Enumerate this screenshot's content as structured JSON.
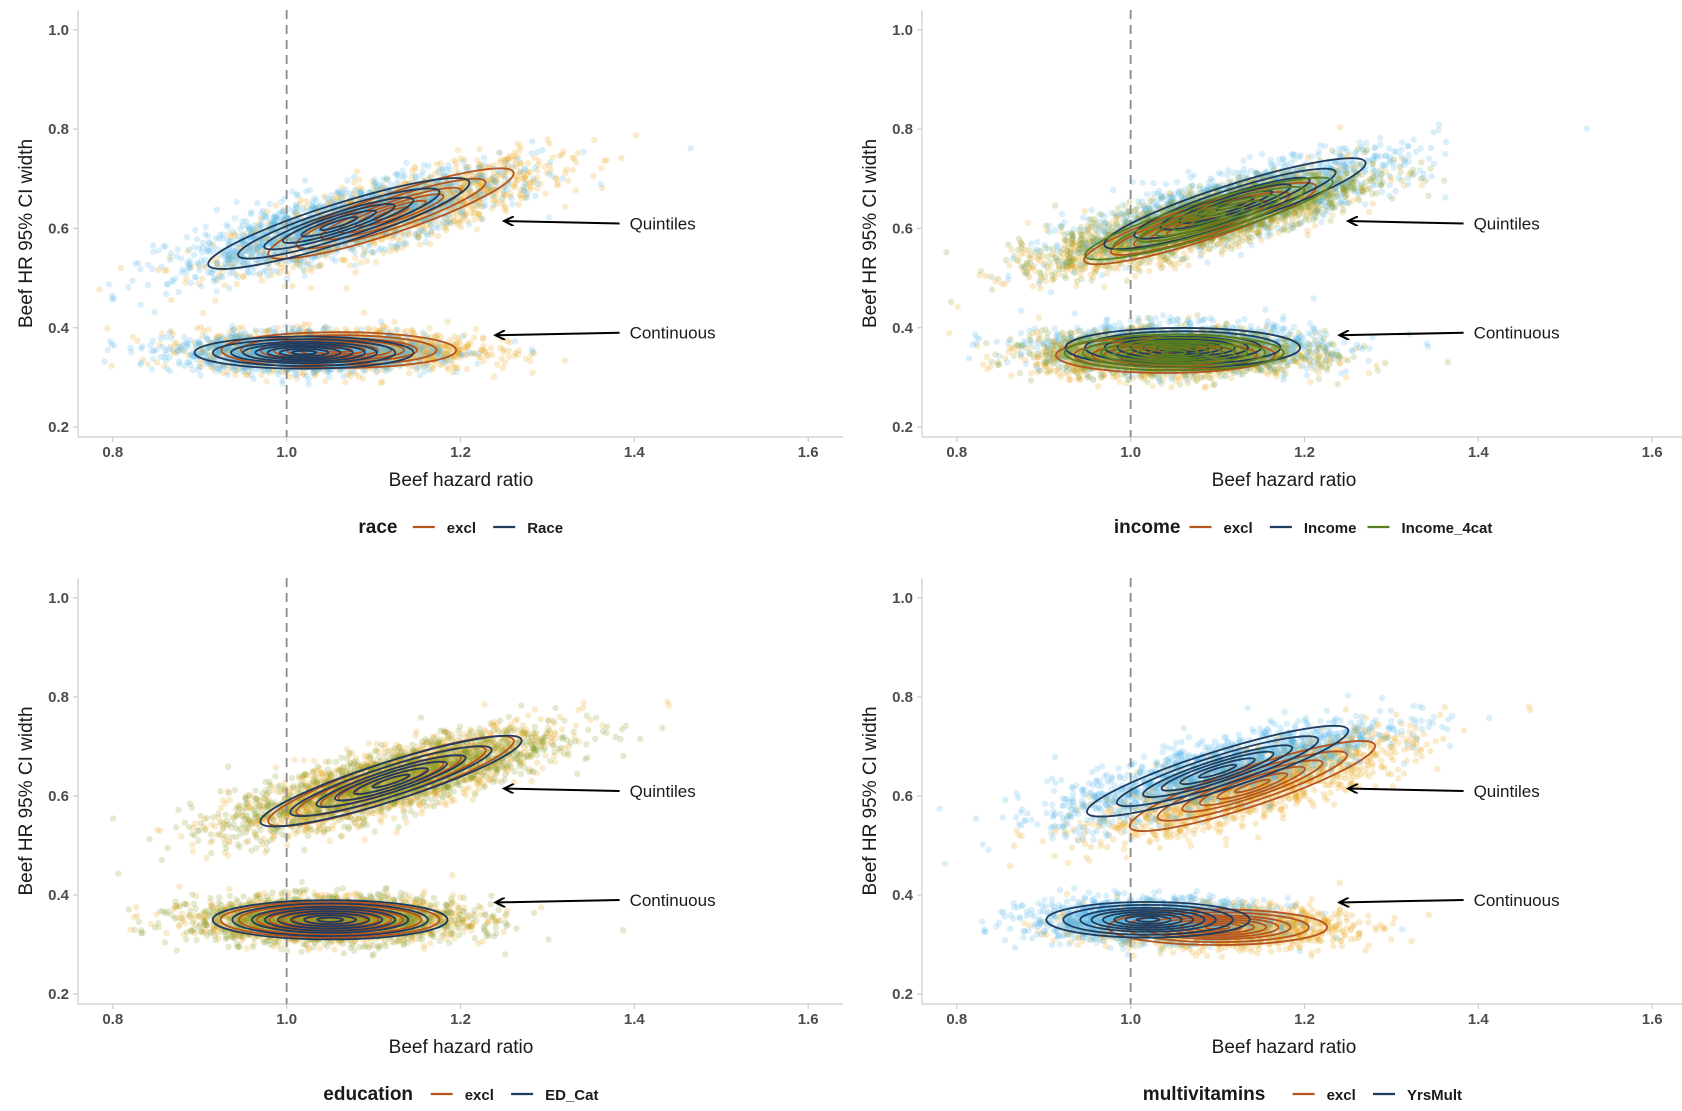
{
  "chart_data": [
    {
      "type": "scatter",
      "xlabel": "Beef hazard ratio",
      "ylabel": "Beef HR 95% CI width",
      "xlim": [
        0.76,
        1.64
      ],
      "ylim": [
        0.18,
        1.04
      ],
      "xticks": [
        "0.8",
        "1.0",
        "1.2",
        "1.4",
        "1.6"
      ],
      "yticks": [
        "0.2",
        "0.4",
        "0.6",
        "0.8",
        "1.0"
      ],
      "ref_line_x": 1.0,
      "legend": {
        "title": "race",
        "position": "bottom"
      },
      "annotations": [
        {
          "text": "Quintiles",
          "x": 1.36,
          "y": 0.61,
          "arrow_to": [
            1.25,
            0.615
          ]
        },
        {
          "text": "Continuous",
          "x": 1.36,
          "y": 0.39,
          "arrow_to": [
            1.24,
            0.385
          ]
        }
      ],
      "series": [
        {
          "name": "excl",
          "color": "#B5541F",
          "cloud_color": "#E8A317",
          "clusters": [
            {
              "x": 1.12,
              "y": 0.63,
              "sx": 0.085,
              "sy": 0.05,
              "rho": 0.8
            },
            {
              "x": 1.06,
              "y": 0.355,
              "sx": 0.075,
              "sy": 0.02,
              "rho": 0
            }
          ]
        },
        {
          "name": "Race",
          "color": "#1F3B5E",
          "cloud_color": "#56B4E9",
          "clusters": [
            {
              "x": 1.06,
              "y": 0.61,
              "sx": 0.09,
              "sy": 0.05,
              "rho": 0.8
            },
            {
              "x": 1.02,
              "y": 0.35,
              "sx": 0.07,
              "sy": 0.018,
              "rho": 0
            }
          ]
        }
      ]
    },
    {
      "type": "scatter",
      "xlabel": "Beef hazard ratio",
      "ylabel": "Beef HR 95% CI width",
      "xlim": [
        0.76,
        1.64
      ],
      "ylim": [
        0.18,
        1.04
      ],
      "xticks": [
        "0.8",
        "1.0",
        "1.2",
        "1.4",
        "1.6"
      ],
      "yticks": [
        "0.2",
        "0.4",
        "0.6",
        "0.8",
        "1.0"
      ],
      "ref_line_x": 1.0,
      "legend": {
        "title": "income",
        "position": "bottom"
      },
      "annotations": [
        {
          "text": "Quintiles",
          "x": 1.36,
          "y": 0.61,
          "arrow_to": [
            1.25,
            0.615
          ]
        },
        {
          "text": "Continuous",
          "x": 1.36,
          "y": 0.39,
          "arrow_to": [
            1.24,
            0.385
          ]
        }
      ],
      "series": [
        {
          "name": "excl",
          "color": "#B5541F",
          "cloud_color": "#E8A317",
          "clusters": [
            {
              "x": 1.08,
              "y": 0.61,
              "sx": 0.08,
              "sy": 0.045,
              "rho": 0.8
            },
            {
              "x": 1.04,
              "y": 0.345,
              "sx": 0.07,
              "sy": 0.02,
              "rho": 0
            }
          ]
        },
        {
          "name": "Income",
          "color": "#1F3B5E",
          "cloud_color": "#56B4E9",
          "clusters": [
            {
              "x": 1.12,
              "y": 0.65,
              "sx": 0.09,
              "sy": 0.05,
              "rho": 0.8
            },
            {
              "x": 1.06,
              "y": 0.36,
              "sx": 0.075,
              "sy": 0.022,
              "rho": 0
            }
          ]
        },
        {
          "name": "Income_4cat",
          "color": "#5A7F1E",
          "cloud_color": "#8A9A2A",
          "clusters": [
            {
              "x": 1.09,
              "y": 0.62,
              "sx": 0.085,
              "sy": 0.045,
              "rho": 0.8
            },
            {
              "x": 1.05,
              "y": 0.35,
              "sx": 0.07,
              "sy": 0.02,
              "rho": 0
            }
          ]
        }
      ]
    },
    {
      "type": "scatter",
      "xlabel": "Beef hazard ratio",
      "ylabel": "Beef HR 95% CI width",
      "xlim": [
        0.76,
        1.64
      ],
      "ylim": [
        0.18,
        1.04
      ],
      "xticks": [
        "0.8",
        "1.0",
        "1.2",
        "1.4",
        "1.6"
      ],
      "yticks": [
        "0.2",
        "0.4",
        "0.6",
        "0.8",
        "1.0"
      ],
      "ref_line_x": 1.0,
      "legend": {
        "title": "education",
        "position": "bottom"
      },
      "annotations": [
        {
          "text": "Quintiles",
          "x": 1.36,
          "y": 0.61,
          "arrow_to": [
            1.25,
            0.615
          ]
        },
        {
          "text": "Continuous",
          "x": 1.36,
          "y": 0.39,
          "arrow_to": [
            1.24,
            0.385
          ]
        }
      ],
      "series": [
        {
          "name": "excl",
          "color": "#B5541F",
          "cloud_color": "#E8A317",
          "clusters": [
            {
              "x": 1.12,
              "y": 0.63,
              "sx": 0.085,
              "sy": 0.05,
              "rho": 0.8
            },
            {
              "x": 1.05,
              "y": 0.35,
              "sx": 0.07,
              "sy": 0.02,
              "rho": 0
            }
          ]
        },
        {
          "name": "ED_Cat",
          "color": "#1F3B5E",
          "cloud_color": "#8A9A2A",
          "clusters": [
            {
              "x": 1.12,
              "y": 0.63,
              "sx": 0.09,
              "sy": 0.05,
              "rho": 0.8
            },
            {
              "x": 1.05,
              "y": 0.35,
              "sx": 0.075,
              "sy": 0.022,
              "rho": 0
            }
          ]
        }
      ]
    },
    {
      "type": "scatter",
      "xlabel": "Beef hazard ratio",
      "ylabel": "Beef HR 95% CI width",
      "xlim": [
        0.76,
        1.64
      ],
      "ylim": [
        0.18,
        1.04
      ],
      "xticks": [
        "0.8",
        "1.0",
        "1.2",
        "1.4",
        "1.6"
      ],
      "yticks": [
        "0.2",
        "0.4",
        "0.6",
        "0.8",
        "1.0"
      ],
      "ref_line_x": 1.0,
      "legend": {
        "title": "multivitamins",
        "position": "bottom"
      },
      "annotations": [
        {
          "text": "Quintiles",
          "x": 1.36,
          "y": 0.61,
          "arrow_to": [
            1.25,
            0.615
          ]
        },
        {
          "text": "Continuous",
          "x": 1.36,
          "y": 0.39,
          "arrow_to": [
            1.24,
            0.385
          ]
        }
      ],
      "series": [
        {
          "name": "excl",
          "color": "#B5541F",
          "cloud_color": "#E8A317",
          "clusters": [
            {
              "x": 1.14,
              "y": 0.62,
              "sx": 0.085,
              "sy": 0.05,
              "rho": 0.8
            },
            {
              "x": 1.1,
              "y": 0.335,
              "sx": 0.07,
              "sy": 0.02,
              "rho": 0
            }
          ]
        },
        {
          "name": "YrsMult",
          "color": "#1F3B5E",
          "cloud_color": "#56B4E9",
          "clusters": [
            {
              "x": 1.1,
              "y": 0.65,
              "sx": 0.09,
              "sy": 0.05,
              "rho": 0.8
            },
            {
              "x": 1.02,
              "y": 0.35,
              "sx": 0.065,
              "sy": 0.02,
              "rho": 0
            }
          ]
        }
      ]
    }
  ]
}
